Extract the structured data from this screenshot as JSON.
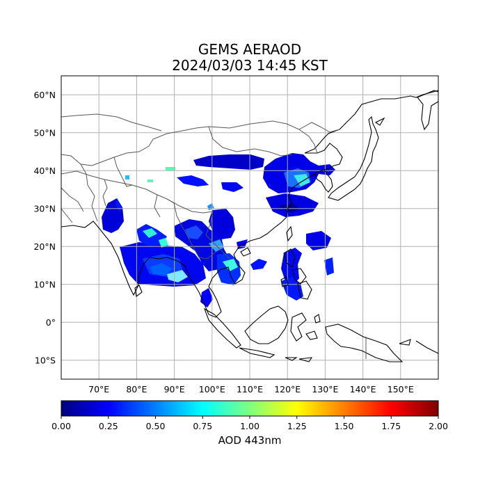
{
  "title": "GEMS AERAOD",
  "subtitle": "2024/03/03 14:45 KST",
  "lon_ticks": [
    "70°E",
    "80°E",
    "90°E",
    "100°E",
    "110°E",
    "120°E",
    "130°E",
    "140°E",
    "150°E"
  ],
  "lat_ticks": [
    "60°N",
    "50°N",
    "40°N",
    "30°N",
    "20°N",
    "10°N",
    "0°",
    "10°S"
  ],
  "colorbar": {
    "label": "AOD 443nm",
    "ticks": [
      "0.00",
      "0.25",
      "0.50",
      "0.75",
      "1.00",
      "1.25",
      "1.50",
      "1.75",
      "2.00"
    ],
    "colors": [
      "#00007f",
      "#0000ff",
      "#007fff",
      "#00ffff",
      "#7fff7f",
      "#ffff00",
      "#ff7f00",
      "#ff0000",
      "#7f0000"
    ]
  },
  "map": {
    "lon_range": [
      60,
      160
    ],
    "lat_range": [
      -15,
      65
    ],
    "colormap": "jet",
    "aod_range": [
      0,
      2
    ]
  }
}
